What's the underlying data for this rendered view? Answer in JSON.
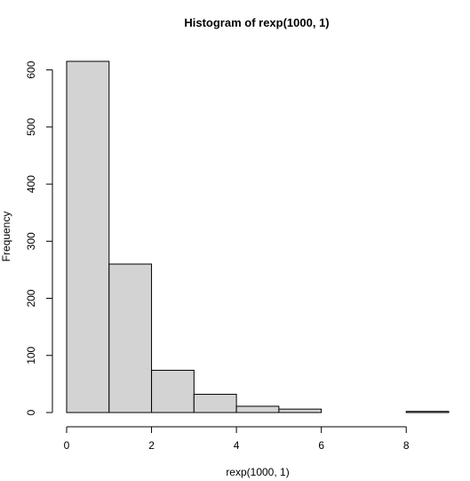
{
  "chart_data": {
    "type": "bar",
    "title": "Histogram of rexp(1000, 1)",
    "xlabel": "rexp(1000, 1)",
    "ylabel": "Frequency",
    "bins": [
      {
        "x0": 0,
        "x1": 1,
        "count": 615
      },
      {
        "x0": 1,
        "x1": 2,
        "count": 260
      },
      {
        "x0": 2,
        "x1": 3,
        "count": 74
      },
      {
        "x0": 3,
        "x1": 4,
        "count": 32
      },
      {
        "x0": 4,
        "x1": 5,
        "count": 11
      },
      {
        "x0": 5,
        "x1": 6,
        "count": 6
      },
      {
        "x0": 6,
        "x1": 7,
        "count": 0
      },
      {
        "x0": 7,
        "x1": 8,
        "count": 0
      },
      {
        "x0": 8,
        "x1": 9,
        "count": 2
      }
    ],
    "xlim": [
      0,
      9
    ],
    "ylim": [
      0,
      615
    ],
    "x_ticks": [
      0,
      2,
      4,
      6,
      8
    ],
    "y_ticks": [
      0,
      100,
      200,
      300,
      400,
      500,
      600
    ],
    "colors": {
      "bar_fill": "#d3d3d3",
      "bar_stroke": "#000000"
    },
    "grid": false
  }
}
